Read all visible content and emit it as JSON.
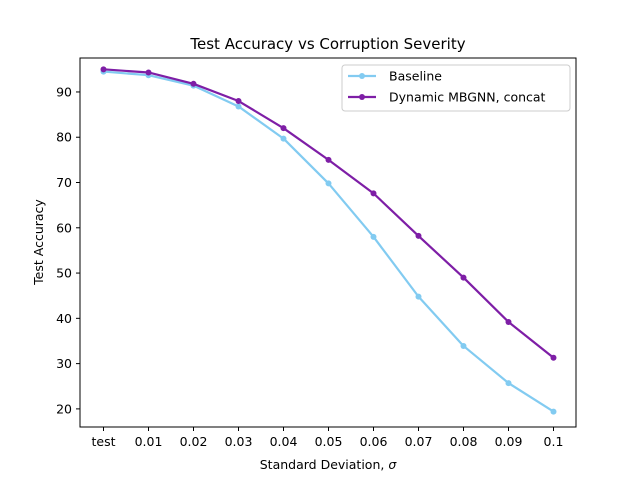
{
  "chart_data": {
    "type": "line",
    "title": "Test Accuracy vs Corruption Severity",
    "xlabel_prefix": "Standard Deviation, ",
    "xlabel_symbol": "σ",
    "ylabel": "Test Accuracy",
    "categories": [
      "test",
      "0.01",
      "0.02",
      "0.03",
      "0.04",
      "0.05",
      "0.06",
      "0.07",
      "0.08",
      "0.09",
      "0.1"
    ],
    "ylim": [
      16,
      97.5
    ],
    "yticks": [
      20,
      30,
      40,
      50,
      60,
      70,
      80,
      90
    ],
    "grid": false,
    "legend_position": "upper right",
    "series": [
      {
        "name": "Baseline",
        "color": "#82cbf1",
        "values": [
          94.5,
          93.7,
          91.4,
          86.8,
          79.7,
          69.8,
          58.0,
          44.8,
          33.9,
          25.7,
          19.4
        ]
      },
      {
        "name": "Dynamic MBGNN, concat",
        "color": "#7e1ea6",
        "values": [
          95.0,
          94.3,
          91.8,
          88.0,
          82.0,
          75.0,
          67.6,
          58.2,
          49.0,
          39.2,
          31.3
        ]
      }
    ]
  }
}
